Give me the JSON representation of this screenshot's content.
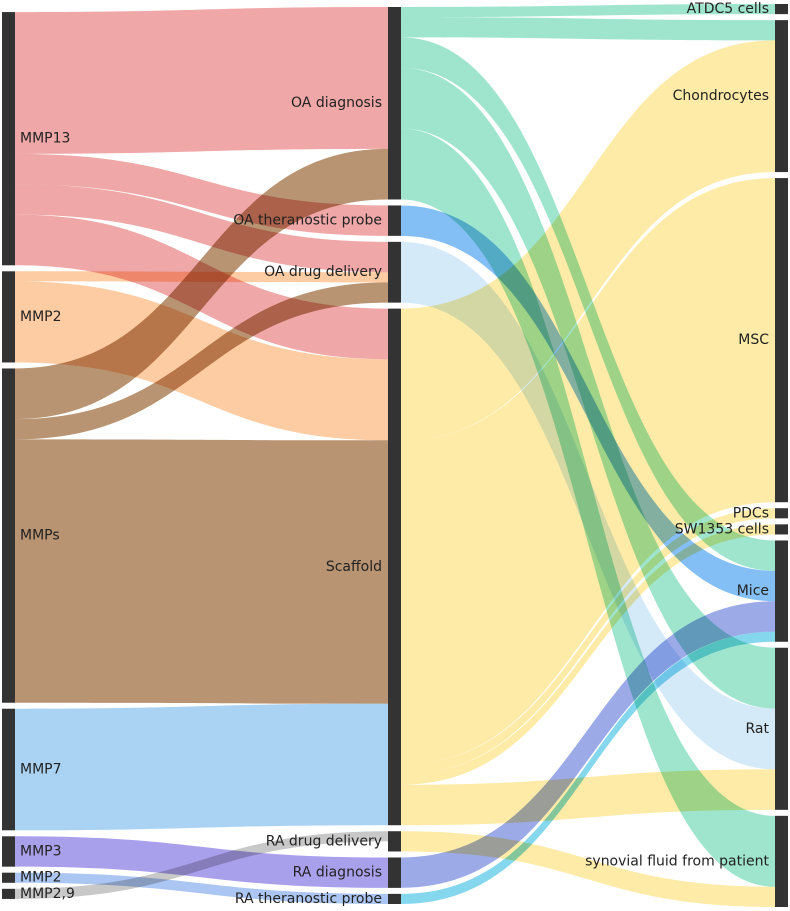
{
  "chart_data": {
    "type": "sankey",
    "nodes": [
      {
        "id": "MMP13",
        "label": "MMP13",
        "column": 0
      },
      {
        "id": "MMP2",
        "label": "MMP2",
        "column": 0
      },
      {
        "id": "MMPs",
        "label": "MMPs",
        "column": 0
      },
      {
        "id": "MMP7",
        "label": "MMP7",
        "column": 0
      },
      {
        "id": "MMP3",
        "label": "MMP3",
        "column": 0
      },
      {
        "id": "MMP2b",
        "label": "MMP2",
        "column": 0
      },
      {
        "id": "MMP29",
        "label": "MMP2,9",
        "column": 0
      },
      {
        "id": "OA_diag",
        "label": "OA diagnosis",
        "column": 1
      },
      {
        "id": "OA_thera",
        "label": "OA theranostic probe",
        "column": 1
      },
      {
        "id": "OA_drug",
        "label": "OA drug delivery",
        "column": 1
      },
      {
        "id": "Scaffold",
        "label": "Scaffold",
        "column": 1
      },
      {
        "id": "RA_drug",
        "label": "RA drug delivery",
        "column": 1
      },
      {
        "id": "RA_diag",
        "label": "RA diagnosis",
        "column": 1
      },
      {
        "id": "RA_thera",
        "label": "RA theranostic probe",
        "column": 1
      },
      {
        "id": "ATDC5",
        "label": "ATDC5 cells",
        "column": 2
      },
      {
        "id": "Chondro",
        "label": "Chondrocytes",
        "column": 2
      },
      {
        "id": "MSC",
        "label": "MSC",
        "column": 2
      },
      {
        "id": "PDCs",
        "label": "PDCs",
        "column": 2
      },
      {
        "id": "SW1353",
        "label": "SW1353 cells",
        "column": 2
      },
      {
        "id": "Mice",
        "label": "Mice",
        "column": 2
      },
      {
        "id": "Rat",
        "label": "Rat",
        "column": 2
      },
      {
        "id": "Synovial",
        "label": "synovial fluid from patient",
        "column": 2
      }
    ],
    "links": [
      {
        "source": "MMP13",
        "target": "OA_diag",
        "value": 14,
        "color": "#e98a8a"
      },
      {
        "source": "MMP13",
        "target": "OA_thera",
        "value": 3,
        "color": "#e98a8a"
      },
      {
        "source": "MMP13",
        "target": "OA_drug",
        "value": 3,
        "color": "#e98a8a"
      },
      {
        "source": "MMP13",
        "target": "Scaffold",
        "value": 5,
        "color": "#e98a8a"
      },
      {
        "source": "MMP2",
        "target": "OA_drug",
        "value": 1,
        "color": "#fdbb84"
      },
      {
        "source": "MMP2",
        "target": "Scaffold",
        "value": 8,
        "color": "#fdbb84"
      },
      {
        "source": "MMPs",
        "target": "OA_diag",
        "value": 5,
        "color": "#a07043"
      },
      {
        "source": "MMPs",
        "target": "OA_drug",
        "value": 2,
        "color": "#a07043"
      },
      {
        "source": "MMPs",
        "target": "Scaffold",
        "value": 26,
        "color": "#a07043"
      },
      {
        "source": "MMP7",
        "target": "Scaffold",
        "value": 12,
        "color": "#8ec4ef"
      },
      {
        "source": "MMP3",
        "target": "RA_diag",
        "value": 3,
        "color": "#8c80e6"
      },
      {
        "source": "MMP2b",
        "target": "RA_thera",
        "value": 1,
        "color": "#8fb3ef"
      },
      {
        "source": "MMP29",
        "target": "RA_drug",
        "value": 1,
        "color": "#b5b5b5"
      },
      {
        "source": "OA_diag",
        "target": "ATDC5",
        "value": 1,
        "color": "#7fdcbe"
      },
      {
        "source": "OA_diag",
        "target": "Chondro",
        "value": 2,
        "color": "#7fdcbe"
      },
      {
        "source": "OA_diag",
        "target": "Mice",
        "value": 3,
        "color": "#7fdcbe"
      },
      {
        "source": "OA_diag",
        "target": "Rat",
        "value": 6,
        "color": "#7fdcbe"
      },
      {
        "source": "OA_diag",
        "target": "Synovial",
        "value": 7,
        "color": "#7fdcbe"
      },
      {
        "source": "OA_thera",
        "target": "Mice",
        "value": 3,
        "color": "#5aa8f0"
      },
      {
        "source": "OA_drug",
        "target": "Rat",
        "value": 6,
        "color": "#c6e3f7"
      },
      {
        "source": "Scaffold",
        "target": "Chondro",
        "value": 13,
        "color": "#fde48a"
      },
      {
        "source": "Scaffold",
        "target": "MSC",
        "value": 32,
        "color": "#fde48a"
      },
      {
        "source": "Scaffold",
        "target": "PDCs",
        "value": 1,
        "color": "#fde48a"
      },
      {
        "source": "Scaffold",
        "target": "SW1353",
        "value": 1,
        "color": "#fde48a"
      },
      {
        "source": "Scaffold",
        "target": "Rat",
        "value": 4,
        "color": "#fde48a"
      },
      {
        "source": "RA_drug",
        "target": "Synovial",
        "value": 2,
        "color": "#fde48a"
      },
      {
        "source": "RA_diag",
        "target": "Mice",
        "value": 3,
        "color": "#7b8fe0"
      },
      {
        "source": "RA_thera",
        "target": "Mice",
        "value": 1,
        "color": "#5cc9e8"
      }
    ]
  }
}
